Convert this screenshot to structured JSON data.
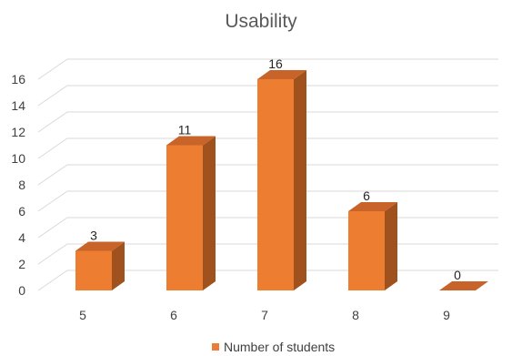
{
  "chart_data": {
    "type": "bar",
    "title": "Usability",
    "categories": [
      "5",
      "6",
      "7",
      "8",
      "9"
    ],
    "series": [
      {
        "name": "Number of students",
        "values": [
          3,
          11,
          16,
          6,
          0
        ]
      }
    ],
    "xlabel": "",
    "ylabel": "",
    "ylim": [
      0,
      16
    ],
    "yticks": [
      "0",
      "2",
      "4",
      "6",
      "8",
      "10",
      "12",
      "14",
      "16"
    ],
    "data_labels": [
      "3",
      "11",
      "16",
      "6",
      "0"
    ],
    "grid": true,
    "legend_position": "bottom",
    "three_d": true,
    "colors": {
      "bar_front": "#ED7D31",
      "bar_side": "#A0521E",
      "bar_top": "#C8642A",
      "gridline": "#D9D9D9"
    }
  }
}
